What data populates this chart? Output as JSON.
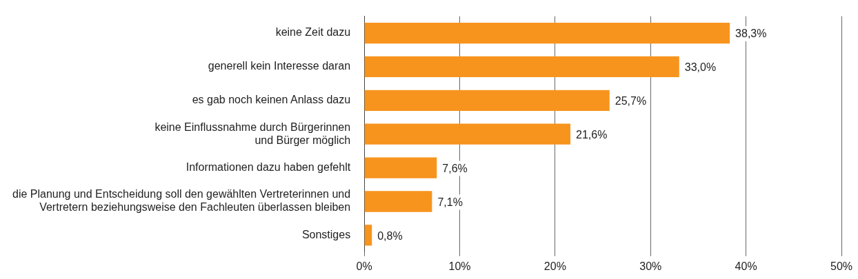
{
  "chart_data": {
    "type": "bar",
    "orientation": "horizontal",
    "categories": [
      "keine Zeit dazu",
      "generell kein Interesse daran",
      "es gab noch keinen Anlass dazu",
      "keine Einflussnahme durch Bürgerinnen\nund Bürger möglich",
      "Informationen dazu haben gefehlt",
      "die Planung und Entscheidung soll den gewählten Vertreterinnen und\nVertretern beziehungsweise den Fachleuten überlassen bleiben",
      "Sonstiges"
    ],
    "values": [
      38.3,
      33.0,
      25.7,
      21.6,
      7.6,
      7.1,
      0.8
    ],
    "value_labels": [
      "38,3%",
      "33,0%",
      "25,7%",
      "21,6%",
      "7,6%",
      "7,1%",
      "0,8%"
    ],
    "color": "#f7941d",
    "xlim": [
      0,
      50
    ],
    "xticks": [
      {
        "value": 0,
        "label": "0%"
      },
      {
        "value": 10,
        "label": "10%"
      },
      {
        "value": 20,
        "label": "20%"
      },
      {
        "value": 30,
        "label": "30%"
      },
      {
        "value": 40,
        "label": "40%"
      },
      {
        "value": 50,
        "label": "50%"
      }
    ],
    "grid": "x",
    "legend": false
  }
}
